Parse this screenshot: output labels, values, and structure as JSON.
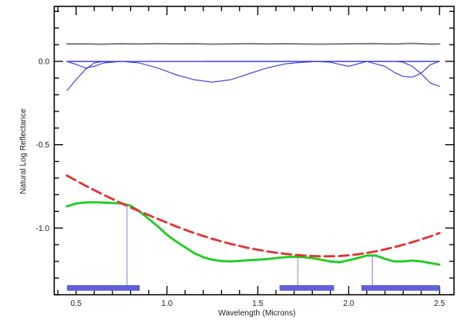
{
  "chart_data": {
    "type": "line",
    "title": "",
    "xlabel": "Wavelength (Microns)",
    "ylabel": "Natural Log Reflectance",
    "xlim": [
      0.38,
      2.58
    ],
    "ylim": [
      -1.4,
      0.33
    ],
    "x_ticks": [
      0.5,
      1.0,
      1.5,
      2.0,
      2.5
    ],
    "x_tick_labels": [
      "0.5",
      "1.0",
      "1.5",
      "2.0",
      "2.5"
    ],
    "y_ticks": [
      0.0,
      -0.5,
      -1.0
    ],
    "y_tick_labels": [
      "0.0",
      "-0.5",
      "-1.0"
    ],
    "grid": false,
    "legend": "none",
    "colors": {
      "residual": "#808080",
      "gaussian": "#3a3ae0",
      "zero_line": "#2020d0",
      "spectrum": "#22cc22",
      "continuum": "#e03535",
      "band_center": "#8080ee",
      "band_range": "#6060dd"
    },
    "series": [
      {
        "id": "residual",
        "style": "solid",
        "x": [
          0.45,
          0.55,
          0.65,
          0.75,
          0.85,
          0.95,
          1.05,
          1.15,
          1.25,
          1.35,
          1.45,
          1.55,
          1.65,
          1.75,
          1.85,
          1.95,
          2.05,
          2.15,
          2.25,
          2.35,
          2.45,
          2.5
        ],
        "y": [
          0.105,
          0.105,
          0.103,
          0.106,
          0.104,
          0.107,
          0.105,
          0.106,
          0.103,
          0.105,
          0.107,
          0.104,
          0.106,
          0.104,
          0.103,
          0.105,
          0.106,
          0.107,
          0.104,
          0.108,
          0.103,
          0.104
        ]
      },
      {
        "id": "zero-line",
        "style": "solid",
        "x": [
          0.45,
          2.5
        ],
        "y": [
          0.0,
          0.0
        ]
      },
      {
        "id": "gaussian-1",
        "style": "solid",
        "x": [
          0.45,
          0.5,
          0.55,
          0.6,
          0.65,
          0.7,
          0.75,
          0.8,
          0.85,
          0.9,
          0.95,
          1.0,
          1.1,
          1.2
        ],
        "y": [
          -0.175,
          -0.11,
          -0.05,
          -0.01,
          0.0,
          0.0,
          0.0,
          0.0,
          0.0,
          0.0,
          0.0,
          0.0,
          0.0,
          0.0
        ]
      },
      {
        "id": "gaussian-2",
        "style": "solid",
        "x": [
          0.45,
          0.5,
          0.55,
          0.6,
          0.65,
          0.7
        ],
        "y": [
          0.0,
          -0.018,
          -0.04,
          -0.03,
          -0.01,
          0.0
        ]
      },
      {
        "id": "gaussian-3",
        "style": "solid",
        "x": [
          0.65,
          0.75,
          0.85,
          0.95,
          1.05,
          1.15,
          1.25,
          1.35,
          1.45,
          1.55,
          1.65,
          1.75,
          1.85
        ],
        "y": [
          -0.01,
          -0.0,
          -0.01,
          -0.04,
          -0.08,
          -0.11,
          -0.125,
          -0.11,
          -0.075,
          -0.04,
          -0.015,
          -0.005,
          0.0
        ]
      },
      {
        "id": "gaussian-4",
        "style": "solid",
        "x": [
          1.8,
          1.9,
          1.95,
          2.0,
          2.05,
          2.1
        ],
        "y": [
          0.0,
          -0.005,
          -0.018,
          -0.03,
          -0.015,
          0.0
        ]
      },
      {
        "id": "gaussian-5",
        "style": "solid",
        "x": [
          2.1,
          2.2,
          2.25,
          2.3,
          2.35,
          2.4,
          2.45,
          2.5
        ],
        "y": [
          0.0,
          -0.03,
          -0.065,
          -0.09,
          -0.095,
          -0.07,
          -0.02,
          0.0
        ]
      },
      {
        "id": "gaussian-6",
        "style": "solid",
        "x": [
          2.25,
          2.3,
          2.35,
          2.4,
          2.45,
          2.5
        ],
        "y": [
          0.0,
          -0.005,
          -0.03,
          -0.075,
          -0.13,
          -0.15
        ]
      },
      {
        "id": "spectrum",
        "style": "solid",
        "x": [
          0.45,
          0.5,
          0.55,
          0.6,
          0.65,
          0.7,
          0.75,
          0.8,
          0.85,
          0.9,
          0.95,
          1.0,
          1.05,
          1.1,
          1.15,
          1.2,
          1.25,
          1.3,
          1.35,
          1.4,
          1.45,
          1.5,
          1.55,
          1.6,
          1.65,
          1.7,
          1.75,
          1.8,
          1.85,
          1.9,
          1.95,
          2.0,
          2.05,
          2.1,
          2.15,
          2.2,
          2.25,
          2.3,
          2.35,
          2.4,
          2.45,
          2.5
        ],
        "y": [
          -0.87,
          -0.853,
          -0.846,
          -0.845,
          -0.847,
          -0.85,
          -0.852,
          -0.865,
          -0.9,
          -0.945,
          -0.99,
          -1.04,
          -1.08,
          -1.115,
          -1.15,
          -1.175,
          -1.19,
          -1.198,
          -1.2,
          -1.197,
          -1.193,
          -1.19,
          -1.187,
          -1.18,
          -1.175,
          -1.172,
          -1.175,
          -1.18,
          -1.19,
          -1.2,
          -1.205,
          -1.193,
          -1.18,
          -1.165,
          -1.165,
          -1.185,
          -1.2,
          -1.2,
          -1.195,
          -1.2,
          -1.21,
          -1.22
        ]
      },
      {
        "id": "continuum",
        "style": "dashed",
        "x": [
          0.45,
          0.55,
          0.65,
          0.75,
          0.85,
          0.95,
          1.05,
          1.15,
          1.25,
          1.35,
          1.45,
          1.55,
          1.65,
          1.75,
          1.85,
          1.95,
          2.05,
          2.15,
          2.25,
          2.35,
          2.45,
          2.5
        ],
        "y": [
          -0.685,
          -0.745,
          -0.8,
          -0.852,
          -0.9,
          -0.945,
          -0.99,
          -1.03,
          -1.065,
          -1.095,
          -1.12,
          -1.14,
          -1.155,
          -1.165,
          -1.17,
          -1.168,
          -1.158,
          -1.14,
          -1.115,
          -1.085,
          -1.05,
          -1.03
        ]
      }
    ],
    "band_centers": [
      0.78,
      1.72,
      2.13
    ],
    "band_ranges": [
      [
        0.45,
        0.85
      ],
      [
        1.62,
        1.92
      ],
      [
        2.07,
        2.5
      ]
    ]
  }
}
